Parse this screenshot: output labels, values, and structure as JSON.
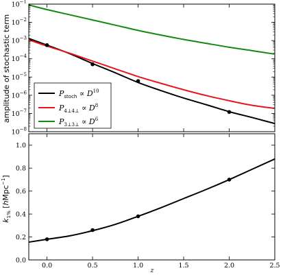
{
  "chart_data": [
    {
      "type": "line",
      "ylabel": "amplitude of stochastic term",
      "xlabel": "",
      "xlim": [
        -0.2,
        2.5
      ],
      "ylim": [
        1e-08,
        0.1
      ],
      "yscale": "log",
      "x_ticks": [
        "",
        "",
        "",
        "",
        "",
        ""
      ],
      "y_ticks": [
        {
          "base": "10",
          "exp": "−8"
        },
        {
          "base": "10",
          "exp": "−7"
        },
        {
          "base": "10",
          "exp": "−6"
        },
        {
          "base": "10",
          "exp": "−5"
        },
        {
          "base": "10",
          "exp": "−4"
        },
        {
          "base": "10",
          "exp": "−3"
        },
        {
          "base": "10",
          "exp": "−2"
        },
        {
          "base": "10",
          "exp": "−1"
        }
      ],
      "legend_position": "lower-left",
      "series": [
        {
          "name": "P_stoch ∝ D^10",
          "color": "#000000",
          "x": [
            -0.2,
            0,
            0.25,
            0.5,
            0.75,
            1.0,
            1.25,
            1.5,
            1.75,
            2.0,
            2.25,
            2.5
          ],
          "y": [
            0.0013,
            0.00056,
            0.00019,
            5.5e-05,
            1.7e-05,
            5e-06,
            1.8e-06,
            7e-07,
            3e-07,
            1.25e-07,
            6e-08,
            2.8e-08
          ]
        },
        {
          "name": "P_4⊥4⊥ ∝ D^8",
          "color": "#e8141b",
          "x": [
            -0.2,
            0,
            0.25,
            0.5,
            0.75,
            1.0,
            1.25,
            1.5,
            1.75,
            2.0,
            2.25,
            2.5
          ],
          "y": [
            0.0011,
            0.0005,
            0.0002,
            7.5e-05,
            2.8e-05,
            1.05e-05,
            4.5e-06,
            2e-06,
            9.5e-07,
            5e-07,
            2.8e-07,
            1.9e-07
          ]
        },
        {
          "name": "P_3⊥3⊥ ∝ D^6",
          "color": "#118a11",
          "x": [
            -0.2,
            0,
            0.25,
            0.5,
            0.75,
            1.0,
            1.25,
            1.5,
            1.75,
            2.0,
            2.25,
            2.5
          ],
          "y": [
            0.09,
            0.05,
            0.026,
            0.0135,
            0.007,
            0.0036,
            0.002,
            0.00115,
            0.0007,
            0.00043,
            0.00028,
            0.00018
          ]
        }
      ],
      "points": {
        "color": "#000000",
        "x": [
          0,
          0.5,
          1.0,
          2.0
        ],
        "y": [
          0.00056,
          5e-05,
          6e-06,
          1.2e-07
        ]
      }
    },
    {
      "type": "line",
      "xlabel": "z",
      "ylabel": "k_1% [h Mpc^−1]",
      "xlim": [
        -0.2,
        2.5
      ],
      "ylim": [
        0,
        1.1
      ],
      "x_ticks": [
        "0.0",
        "0.5",
        "1.0",
        "1.5",
        "2.0",
        "2.5"
      ],
      "y_ticks": [
        "0.0",
        "0.2",
        "0.4",
        "0.6",
        "0.8",
        "1.0"
      ],
      "series": [
        {
          "name": "",
          "color": "#000000",
          "x": [
            -0.2,
            0,
            0.25,
            0.5,
            0.75,
            1.0,
            1.25,
            1.5,
            1.75,
            2.0,
            2.25,
            2.5
          ],
          "y": [
            0.155,
            0.18,
            0.21,
            0.255,
            0.31,
            0.38,
            0.455,
            0.535,
            0.615,
            0.7,
            0.79,
            0.88
          ]
        }
      ],
      "points": {
        "color": "#000000",
        "x": [
          0,
          0.5,
          1.0,
          2.0
        ],
        "y": [
          0.18,
          0.26,
          0.38,
          0.7
        ]
      }
    }
  ]
}
